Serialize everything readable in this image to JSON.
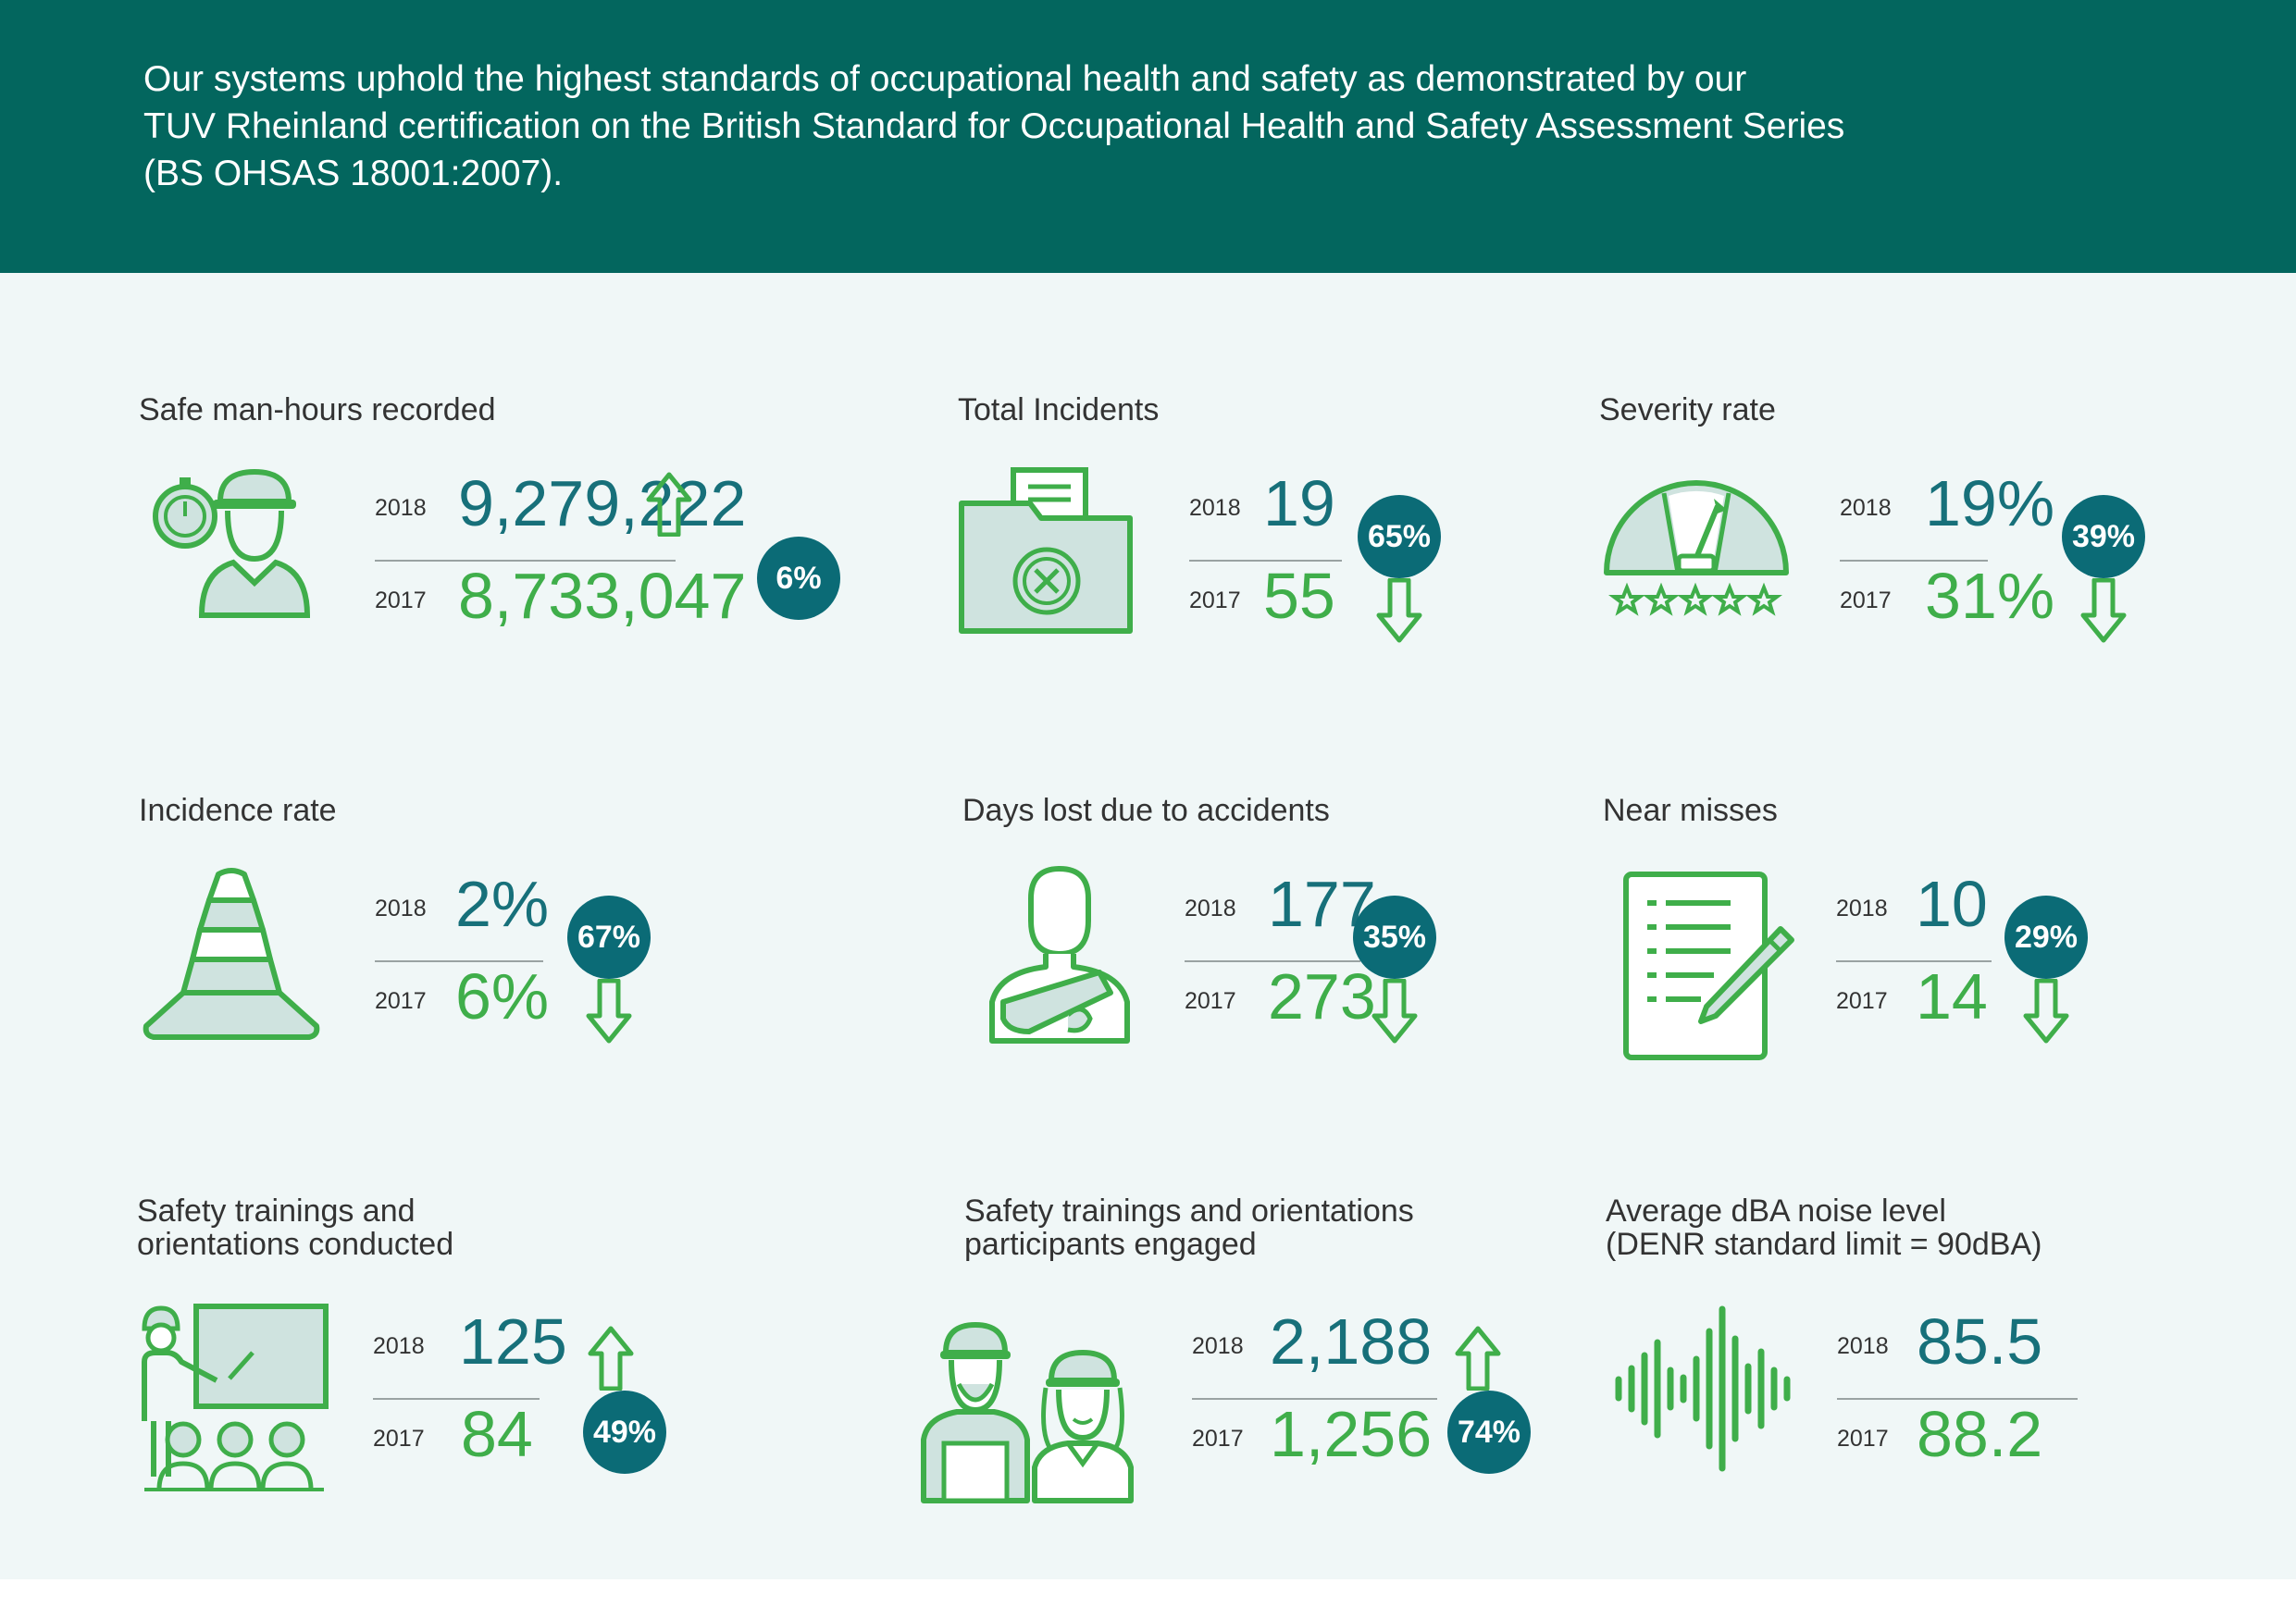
{
  "intro": {
    "line1": "Our systems uphold the highest standards of occupational health and safety as demonstrated by our",
    "line2": "TUV Rheinland certification on the British Standard for Occupational Health and Safety Assessment Series",
    "line3": "(BS OHSAS 18001:2007)."
  },
  "colors": {
    "header_bg": "#03665e",
    "panel_bg": "#f0f7f7",
    "value_2018": "#17707a",
    "value_2017": "#3fae4a",
    "badge_bg": "#0b6b76",
    "icon_stroke": "#3fae4a",
    "icon_fill": "#cfe3df"
  },
  "metrics": [
    {
      "title": "Safe man-hours recorded",
      "icon": "worker-stopwatch-icon",
      "year_2018": "2018",
      "value_2018": "9,279,222",
      "year_2017": "2017",
      "value_2017": "8,733,047",
      "change": "6%",
      "direction": "up"
    },
    {
      "title": "Total Incidents",
      "icon": "incident-folder-icon",
      "year_2018": "2018",
      "value_2018": "19",
      "year_2017": "2017",
      "value_2017": "55",
      "change": "65%",
      "direction": "down"
    },
    {
      "title": "Severity rate",
      "icon": "severity-gauge-icon",
      "year_2018": "2018",
      "value_2018": "19%",
      "year_2017": "2017",
      "value_2017": "31%",
      "change": "39%",
      "direction": "down"
    },
    {
      "title": "Incidence rate",
      "icon": "traffic-cone-icon",
      "year_2018": "2018",
      "value_2018": "2%",
      "year_2017": "2017",
      "value_2017": "6%",
      "change": "67%",
      "direction": "down"
    },
    {
      "title": "Days lost due to accidents",
      "icon": "injured-person-icon",
      "year_2018": "2018",
      "value_2018": "177",
      "year_2017": "2017",
      "value_2017": "273",
      "change": "35%",
      "direction": "down"
    },
    {
      "title": "Near misses",
      "icon": "checklist-pencil-icon",
      "year_2018": "2018",
      "value_2018": "10",
      "year_2017": "2017",
      "value_2017": "14",
      "change": "29%",
      "direction": "down"
    },
    {
      "title_line1": "Safety trainings and",
      "title_line2": "orientations conducted",
      "icon": "training-presentation-icon",
      "year_2018": "2018",
      "value_2018": "125",
      "year_2017": "2017",
      "value_2017": "84",
      "change": "49%",
      "direction": "up"
    },
    {
      "title_line1": "Safety trainings and orientations",
      "title_line2": "participants engaged",
      "icon": "workers-group-icon",
      "year_2018": "2018",
      "value_2018": "2,188",
      "year_2017": "2017",
      "value_2017": "1,256",
      "change": "74%",
      "direction": "up"
    },
    {
      "title_line1": "Average dBA noise level",
      "title_line2": "(DENR standard limit = 90dBA)",
      "icon": "sound-wave-icon",
      "year_2018": "2018",
      "value_2018": "85.5",
      "year_2017": "2017",
      "value_2017": "88.2"
    }
  ]
}
